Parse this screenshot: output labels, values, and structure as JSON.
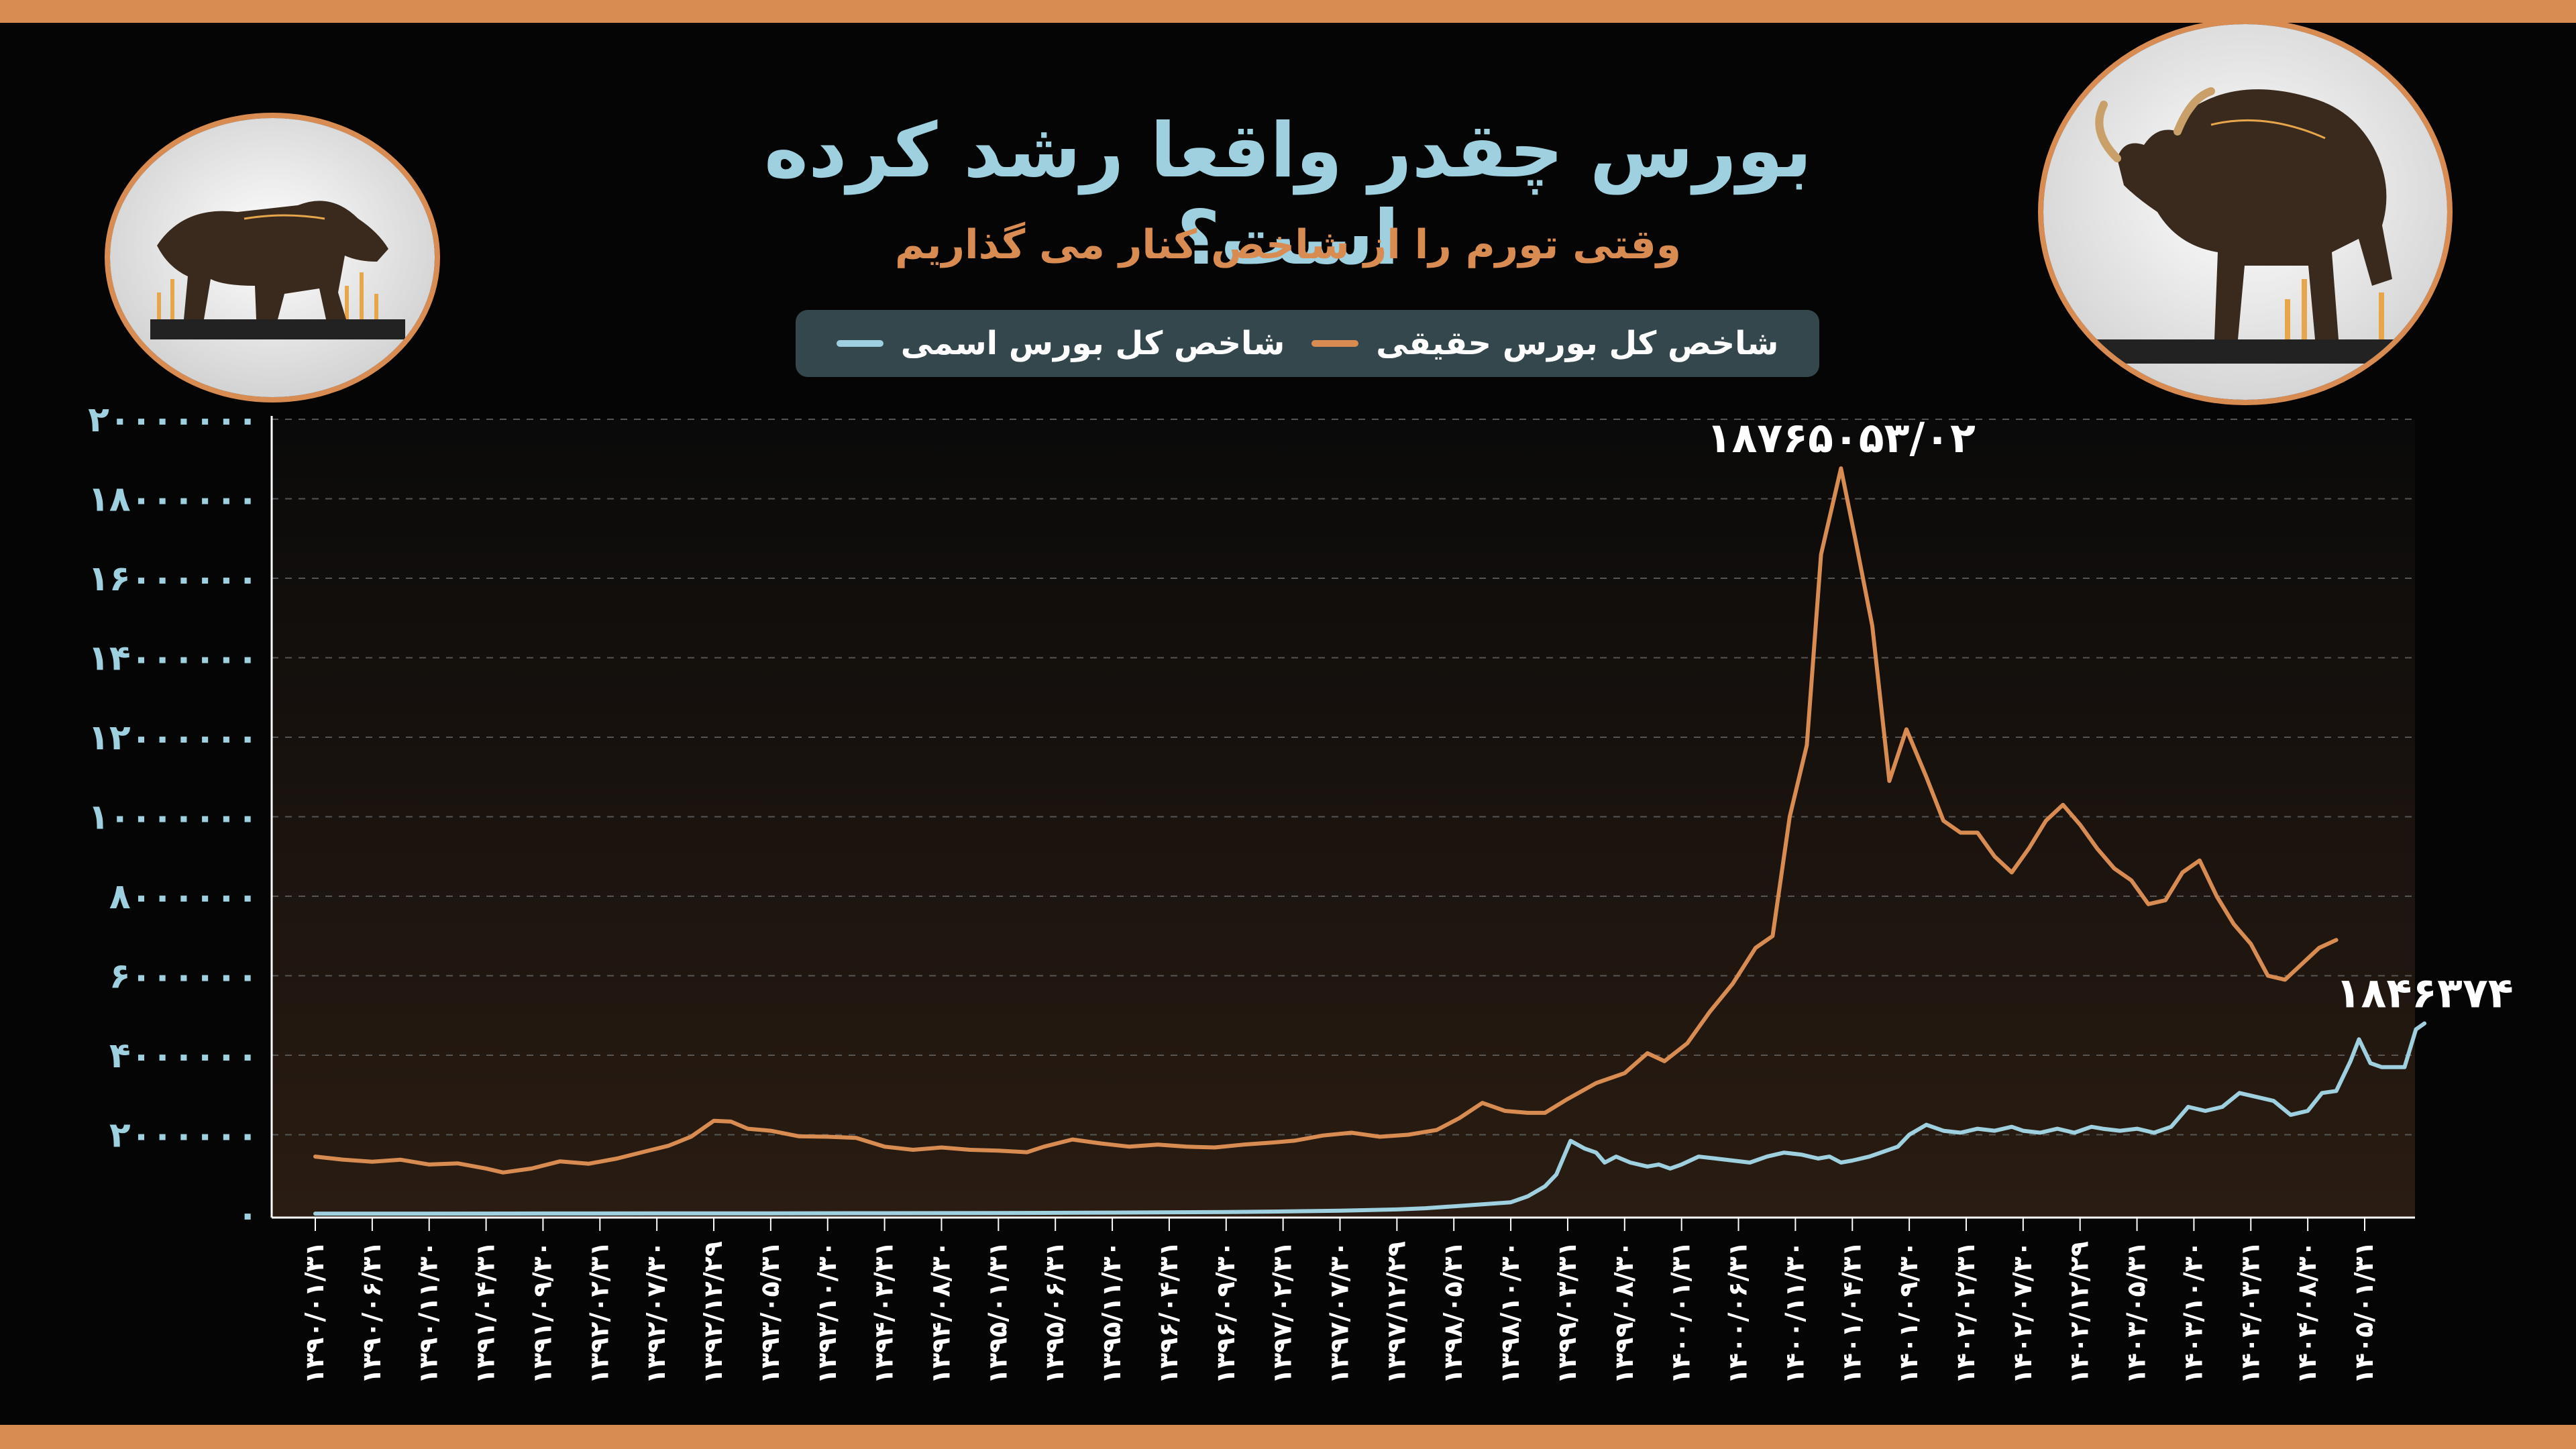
{
  "header": {
    "title": "بورس چقدر واقعا رشد کرده است؟",
    "subtitle": "وقتی تورم را از شاخص کنار می گذاریم"
  },
  "colors": {
    "nominal": "#9fd0e0",
    "real": "#d98c52",
    "accent": "#d98c52",
    "legend_bg": "#34474d"
  },
  "icons": {
    "left": "bear-icon",
    "right": "bull-icon"
  },
  "chart_data": {
    "type": "line",
    "title": "بورس چقدر واقعا رشد کرده است؟",
    "subtitle": "وقتی تورم را از شاخص کنار می گذاریم",
    "ylim": [
      0,
      20000000
    ],
    "y_ticks": [
      "۲۰۰۰۰۰۰۰",
      "۱۸۰۰۰۰۰۰",
      "۱۶۰۰۰۰۰۰",
      "۱۴۰۰۰۰۰۰",
      "۱۲۰۰۰۰۰۰",
      "۱۰۰۰۰۰۰۰",
      "۸۰۰۰۰۰۰",
      "۶۰۰۰۰۰۰",
      "۴۰۰۰۰۰۰",
      "۲۰۰۰۰۰۰",
      "۰"
    ],
    "x_ticks": [
      "۱۳۹۰/۰۱/۳۱",
      "۱۳۹۰/۰۶/۳۱",
      "۱۳۹۰/۱۱/۳۰",
      "۱۳۹۱/۰۴/۳۱",
      "۱۳۹۱/۰۹/۳۰",
      "۱۳۹۲/۰۲/۳۱",
      "۱۳۹۲/۰۷/۳۰",
      "۱۳۹۲/۱۲/۲۹",
      "۱۳۹۳/۰۵/۳۱",
      "۱۳۹۳/۱۰/۳۰",
      "۱۳۹۴/۰۳/۳۱",
      "۱۳۹۴/۰۸/۳۰",
      "۱۳۹۵/۰۱/۳۱",
      "۱۳۹۵/۰۶/۳۱",
      "۱۳۹۵/۱۱/۳۰",
      "۱۳۹۶/۰۴/۳۱",
      "۱۳۹۶/۰۹/۳۰",
      "۱۳۹۷/۰۲/۳۱",
      "۱۳۹۷/۰۷/۳۰",
      "۱۳۹۷/۱۲/۲۹",
      "۱۳۹۸/۰۵/۳۱",
      "۱۳۹۸/۱۰/۳۰",
      "۱۳۹۹/۰۳/۳۱",
      "۱۳۹۹/۰۸/۳۰",
      "۱۴۰۰/۰۱/۳۱",
      "۱۴۰۰/۰۶/۳۱",
      "۱۴۰۰/۱۱/۳۰",
      "۱۴۰۱/۰۴/۳۱",
      "۱۴۰۱/۰۹/۳۰",
      "۱۴۰۲/۰۲/۳۱",
      "۱۴۰۲/۰۷/۳۰",
      "۱۴۰۲/۱۲/۲۹",
      "۱۴۰۳/۰۵/۳۱",
      "۱۴۰۳/۱۰/۳۰",
      "۱۴۰۴/۰۳/۳۱",
      "۱۴۰۴/۰۸/۳۰",
      "۱۴۰۵/۰۱/۳۱"
    ],
    "series": [
      {
        "name": "شاخص کل بورس اسمی",
        "color": "#9fd0e0",
        "peak_label": "۱۸۴۶۳۷۴",
        "points": [
          [
            0,
            15000
          ],
          [
            2,
            16000
          ],
          [
            4,
            18000
          ],
          [
            6,
            20000
          ],
          [
            8,
            22000
          ],
          [
            10,
            25000
          ],
          [
            12,
            30000
          ],
          [
            14,
            40000
          ],
          [
            16,
            55000
          ],
          [
            17,
            70000
          ],
          [
            18,
            90000
          ],
          [
            19,
            120000
          ],
          [
            19.5,
            150000
          ],
          [
            20,
            200000
          ],
          [
            20.5,
            250000
          ],
          [
            21,
            300000
          ],
          [
            21.3,
            450000
          ],
          [
            21.6,
            700000
          ],
          [
            21.8,
            1000000
          ],
          [
            22.05,
            1846374
          ],
          [
            22.3,
            1650000
          ],
          [
            22.5,
            1550000
          ],
          [
            22.65,
            1300000
          ],
          [
            22.85,
            1450000
          ],
          [
            23.1,
            1300000
          ],
          [
            23.4,
            1200000
          ],
          [
            23.6,
            1250000
          ],
          [
            23.8,
            1150000
          ],
          [
            24,
            1250000
          ],
          [
            24.3,
            1450000
          ],
          [
            24.6,
            1400000
          ],
          [
            24.9,
            1350000
          ],
          [
            25.2,
            1300000
          ],
          [
            25.5,
            1450000
          ],
          [
            25.8,
            1550000
          ],
          [
            26.1,
            1500000
          ],
          [
            26.4,
            1400000
          ],
          [
            26.6,
            1450000
          ],
          [
            26.8,
            1300000
          ],
          [
            27,
            1350000
          ],
          [
            27.3,
            1450000
          ],
          [
            27.6,
            1600000
          ],
          [
            27.8,
            1700000
          ],
          [
            28,
            2000000
          ],
          [
            28.3,
            2250000
          ],
          [
            28.6,
            2100000
          ],
          [
            28.9,
            2050000
          ],
          [
            29.2,
            2150000
          ],
          [
            29.5,
            2100000
          ],
          [
            29.8,
            2200000
          ],
          [
            30,
            2100000
          ],
          [
            30.3,
            2050000
          ],
          [
            30.6,
            2150000
          ],
          [
            30.9,
            2050000
          ],
          [
            31.2,
            2200000
          ],
          [
            31.4,
            2150000
          ],
          [
            31.7,
            2100000
          ],
          [
            32,
            2150000
          ],
          [
            32.3,
            2050000
          ],
          [
            32.6,
            2200000
          ],
          [
            32.9,
            2700000
          ],
          [
            33.2,
            2600000
          ],
          [
            33.5,
            2700000
          ],
          [
            33.8,
            3050000
          ],
          [
            34.1,
            2950000
          ],
          [
            34.4,
            2850000
          ],
          [
            34.7,
            2500000
          ],
          [
            35,
            2600000
          ],
          [
            35.25,
            3050000
          ],
          [
            35.5,
            3100000
          ],
          [
            35.75,
            3850000
          ],
          [
            35.9,
            4400000
          ],
          [
            36.1,
            3800000
          ],
          [
            36.3,
            3700000
          ],
          [
            36.55,
            3700000
          ],
          [
            36.7,
            3700000
          ],
          [
            36.9,
            4650000
          ],
          [
            37.05,
            4800000
          ]
        ]
      },
      {
        "name": "شاخص کل بورس حقیقی",
        "color": "#d98c52",
        "peak_label": "۱۸۷۶۵۰۵۳/۰۲",
        "points": [
          [
            0,
            1450000
          ],
          [
            0.5,
            1370000
          ],
          [
            1,
            1320000
          ],
          [
            1.5,
            1370000
          ],
          [
            2,
            1250000
          ],
          [
            2.5,
            1280000
          ],
          [
            3,
            1150000
          ],
          [
            3.3,
            1050000
          ],
          [
            3.8,
            1150000
          ],
          [
            4.3,
            1330000
          ],
          [
            4.8,
            1270000
          ],
          [
            5.3,
            1400000
          ],
          [
            5.8,
            1580000
          ],
          [
            6.2,
            1720000
          ],
          [
            6.6,
            1950000
          ],
          [
            7,
            2350000
          ],
          [
            7.3,
            2330000
          ],
          [
            7.6,
            2150000
          ],
          [
            8,
            2100000
          ],
          [
            8.5,
            1960000
          ],
          [
            9,
            1950000
          ],
          [
            9.5,
            1920000
          ],
          [
            10,
            1700000
          ],
          [
            10.5,
            1620000
          ],
          [
            11,
            1680000
          ],
          [
            11.5,
            1620000
          ],
          [
            12,
            1600000
          ],
          [
            12.5,
            1560000
          ],
          [
            12.8,
            1700000
          ],
          [
            13.3,
            1880000
          ],
          [
            13.8,
            1780000
          ],
          [
            14.3,
            1700000
          ],
          [
            14.8,
            1750000
          ],
          [
            15.3,
            1700000
          ],
          [
            15.8,
            1680000
          ],
          [
            16.3,
            1750000
          ],
          [
            16.8,
            1800000
          ],
          [
            17.2,
            1850000
          ],
          [
            17.7,
            1980000
          ],
          [
            18.2,
            2050000
          ],
          [
            18.7,
            1950000
          ],
          [
            19.2,
            2000000
          ],
          [
            19.7,
            2120000
          ],
          [
            20.1,
            2420000
          ],
          [
            20.5,
            2800000
          ],
          [
            20.9,
            2600000
          ],
          [
            21.3,
            2550000
          ],
          [
            21.6,
            2550000
          ],
          [
            22,
            2900000
          ],
          [
            22.5,
            3300000
          ],
          [
            23,
            3550000
          ],
          [
            23.4,
            4050000
          ],
          [
            23.7,
            3850000
          ],
          [
            24.1,
            4300000
          ],
          [
            24.5,
            5100000
          ],
          [
            24.9,
            5800000
          ],
          [
            25.3,
            6700000
          ],
          [
            25.6,
            7000000
          ],
          [
            25.9,
            10000000
          ],
          [
            26.2,
            11800000
          ],
          [
            26.45,
            16600000
          ],
          [
            26.8,
            18765053
          ],
          [
            27.05,
            17000000
          ],
          [
            27.35,
            14800000
          ],
          [
            27.65,
            10900000
          ],
          [
            27.95,
            12200000
          ],
          [
            28.3,
            11000000
          ],
          [
            28.6,
            9900000
          ],
          [
            28.9,
            9600000
          ],
          [
            29.2,
            9600000
          ],
          [
            29.5,
            9000000
          ],
          [
            29.8,
            8600000
          ],
          [
            30.1,
            9200000
          ],
          [
            30.4,
            9900000
          ],
          [
            30.7,
            10300000
          ],
          [
            31,
            9800000
          ],
          [
            31.3,
            9200000
          ],
          [
            31.6,
            8700000
          ],
          [
            31.9,
            8400000
          ],
          [
            32.2,
            7800000
          ],
          [
            32.5,
            7900000
          ],
          [
            32.8,
            8600000
          ],
          [
            33.1,
            8900000
          ],
          [
            33.4,
            8000000
          ],
          [
            33.7,
            7300000
          ],
          [
            34,
            6800000
          ],
          [
            34.3,
            6000000
          ],
          [
            34.6,
            5900000
          ],
          [
            34.9,
            6300000
          ],
          [
            35.2,
            6700000
          ],
          [
            35.5,
            6900000
          ]
        ]
      }
    ],
    "annotations": [
      "۱۸۷۶۵۰۵۳/۰۲",
      "۱۸۴۶۳۷۴"
    ],
    "legend": [
      "شاخص کل بورس اسمی",
      "شاخص کل بورس حقیقی"
    ],
    "grid": true,
    "legend_position": "top-center"
  }
}
